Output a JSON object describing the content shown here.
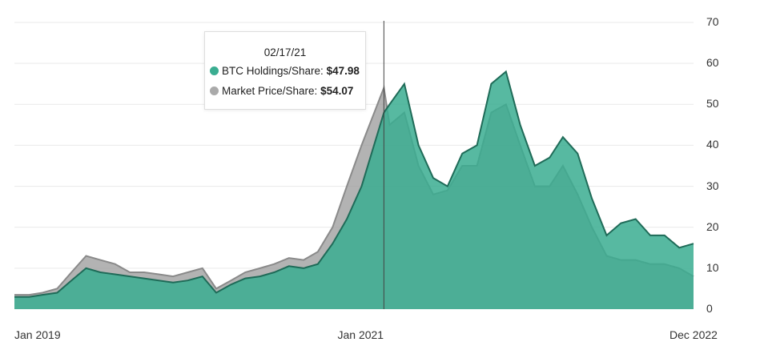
{
  "chart_data": {
    "type": "area",
    "title": "",
    "xlabel": "",
    "ylabel": "",
    "ylim": [
      0,
      70
    ],
    "y_ticks": [
      "0",
      "10",
      "20",
      "30",
      "40",
      "50",
      "60",
      "70"
    ],
    "x_tick_labels": [
      "Jan 2019",
      "Jan 2021",
      "Dec 2022"
    ],
    "x_tick_dates": [
      "2019-01-01",
      "2021-01-01",
      "2022-12-01"
    ],
    "grid": true,
    "legend": "none",
    "series": [
      {
        "name": "BTC Holdings/Share",
        "color": "#3aad91",
        "line_color": "#1f6b58",
        "points": [
          [
            "2019-01-01",
            3
          ],
          [
            "2019-02-01",
            3
          ],
          [
            "2019-03-01",
            3.5
          ],
          [
            "2019-04-01",
            4
          ],
          [
            "2019-05-01",
            7
          ],
          [
            "2019-06-01",
            10
          ],
          [
            "2019-07-01",
            9
          ],
          [
            "2019-08-01",
            8.5
          ],
          [
            "2019-09-01",
            8
          ],
          [
            "2019-10-01",
            7.5
          ],
          [
            "2019-11-01",
            7
          ],
          [
            "2019-12-01",
            6.5
          ],
          [
            "2020-01-01",
            7
          ],
          [
            "2020-02-01",
            8
          ],
          [
            "2020-03-01",
            4
          ],
          [
            "2020-04-01",
            6
          ],
          [
            "2020-05-01",
            7.5
          ],
          [
            "2020-06-01",
            8
          ],
          [
            "2020-07-01",
            9
          ],
          [
            "2020-08-01",
            10.5
          ],
          [
            "2020-09-01",
            10
          ],
          [
            "2020-10-01",
            11
          ],
          [
            "2020-11-01",
            16
          ],
          [
            "2020-12-01",
            22
          ],
          [
            "2021-01-01",
            30
          ],
          [
            "2021-02-17",
            47.98
          ],
          [
            "2021-03-01",
            50
          ],
          [
            "2021-04-01",
            55
          ],
          [
            "2021-05-01",
            40
          ],
          [
            "2021-06-01",
            32
          ],
          [
            "2021-07-01",
            30
          ],
          [
            "2021-08-01",
            38
          ],
          [
            "2021-09-01",
            40
          ],
          [
            "2021-10-01",
            55
          ],
          [
            "2021-11-01",
            58
          ],
          [
            "2021-12-01",
            45
          ],
          [
            "2022-01-01",
            35
          ],
          [
            "2022-02-01",
            37
          ],
          [
            "2022-03-01",
            42
          ],
          [
            "2022-04-01",
            38
          ],
          [
            "2022-05-01",
            27
          ],
          [
            "2022-06-01",
            18
          ],
          [
            "2022-07-01",
            21
          ],
          [
            "2022-08-01",
            22
          ],
          [
            "2022-09-01",
            18
          ],
          [
            "2022-10-01",
            18
          ],
          [
            "2022-11-01",
            15
          ],
          [
            "2022-12-01",
            16
          ]
        ]
      },
      {
        "name": "Market Price/Share",
        "color": "#9a9a9a",
        "points": [
          [
            "2019-01-01",
            3.5
          ],
          [
            "2019-02-01",
            3.5
          ],
          [
            "2019-03-01",
            4
          ],
          [
            "2019-04-01",
            5
          ],
          [
            "2019-05-01",
            9
          ],
          [
            "2019-06-01",
            13
          ],
          [
            "2019-07-01",
            12
          ],
          [
            "2019-08-01",
            11
          ],
          [
            "2019-09-01",
            9
          ],
          [
            "2019-10-01",
            9
          ],
          [
            "2019-11-01",
            8.5
          ],
          [
            "2019-12-01",
            8
          ],
          [
            "2020-01-01",
            9
          ],
          [
            "2020-02-01",
            10
          ],
          [
            "2020-03-01",
            5
          ],
          [
            "2020-04-01",
            7
          ],
          [
            "2020-05-01",
            9
          ],
          [
            "2020-06-01",
            10
          ],
          [
            "2020-07-01",
            11
          ],
          [
            "2020-08-01",
            12.5
          ],
          [
            "2020-09-01",
            12
          ],
          [
            "2020-10-01",
            14
          ],
          [
            "2020-11-01",
            20
          ],
          [
            "2020-12-01",
            30
          ],
          [
            "2021-01-01",
            40
          ],
          [
            "2021-02-17",
            54.07
          ],
          [
            "2021-03-01",
            45
          ],
          [
            "2021-04-01",
            48
          ],
          [
            "2021-05-01",
            35
          ],
          [
            "2021-06-01",
            28
          ],
          [
            "2021-07-01",
            29
          ],
          [
            "2021-08-01",
            35
          ],
          [
            "2021-09-01",
            35
          ],
          [
            "2021-10-01",
            48
          ],
          [
            "2021-11-01",
            50
          ],
          [
            "2021-12-01",
            40
          ],
          [
            "2022-01-01",
            30
          ],
          [
            "2022-02-01",
            30
          ],
          [
            "2022-03-01",
            35
          ],
          [
            "2022-04-01",
            28
          ],
          [
            "2022-05-01",
            20
          ],
          [
            "2022-06-01",
            13
          ],
          [
            "2022-07-01",
            12
          ],
          [
            "2022-08-01",
            12
          ],
          [
            "2022-09-01",
            11
          ],
          [
            "2022-10-01",
            11
          ],
          [
            "2022-11-01",
            10
          ],
          [
            "2022-12-01",
            8
          ]
        ]
      }
    ],
    "tooltip": {
      "date": "02/17/21",
      "marker_date": "2021-02-17",
      "rows": [
        {
          "label": "BTC Holdings/Share:",
          "value": "$47.98",
          "color": "#3aad91"
        },
        {
          "label": "Market Price/Share:",
          "value": "$54.07",
          "color": "#aaaaaa"
        }
      ]
    }
  }
}
